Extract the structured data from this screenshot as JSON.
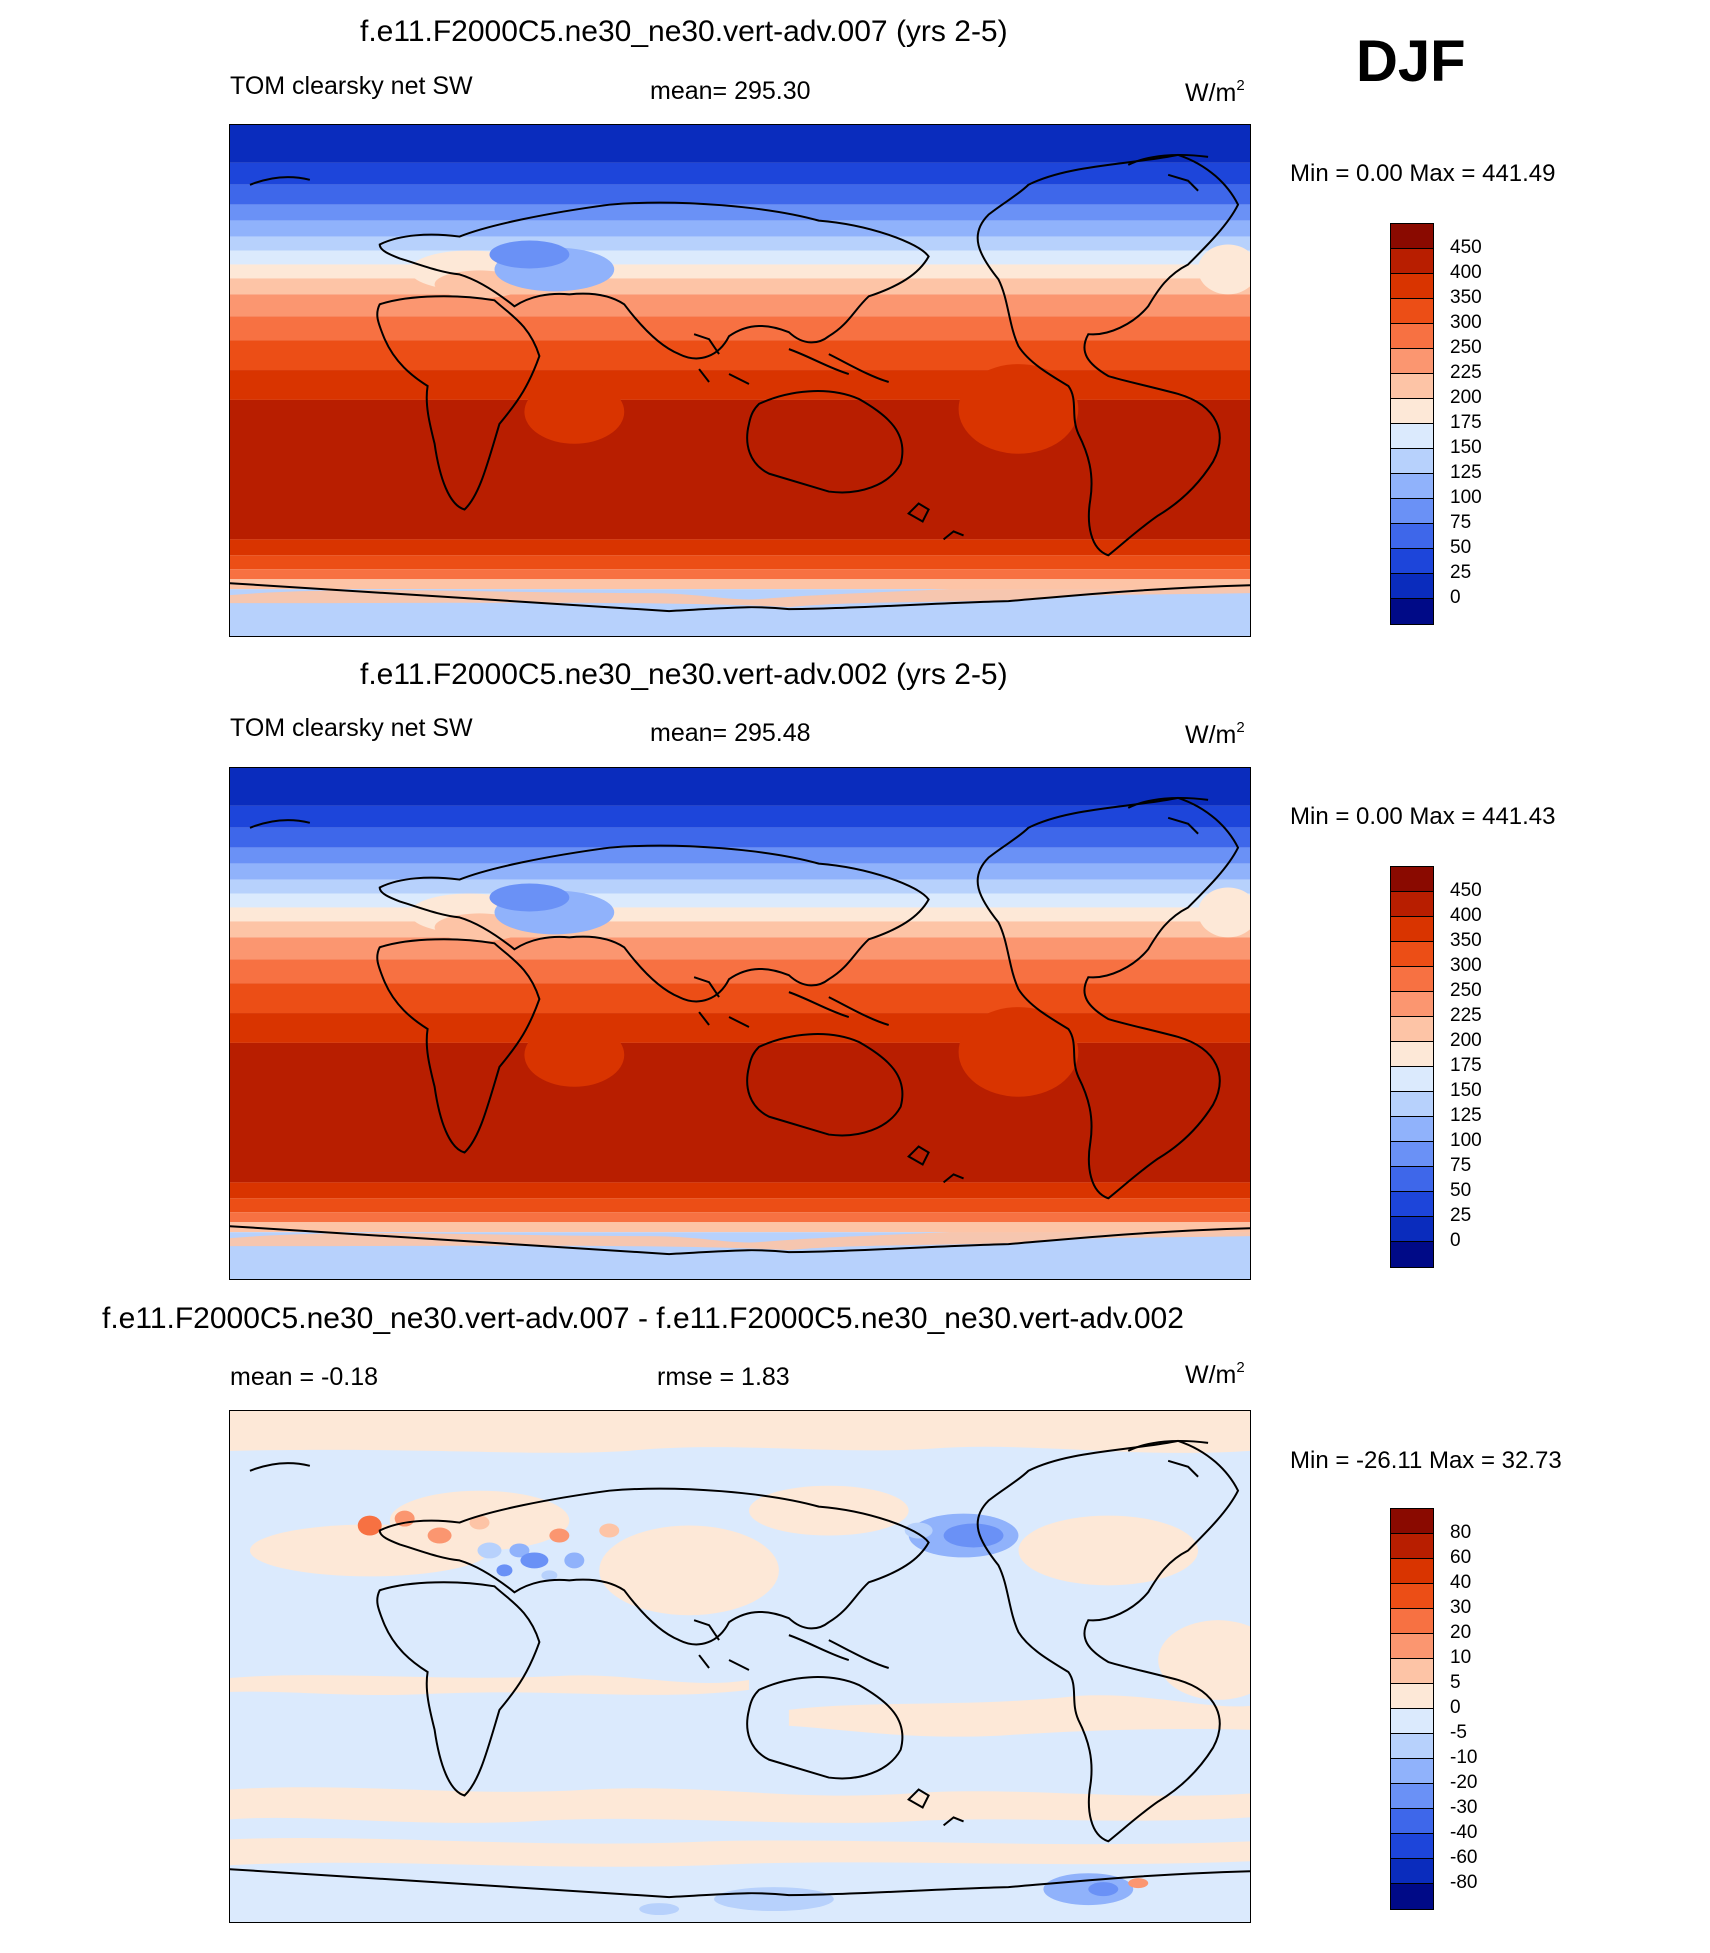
{
  "season": "DJF",
  "variable_label": "TOM clearsky net SW",
  "units_base": "W/m",
  "units_exp": "2",
  "panels": [
    {
      "title": "f.e11.F2000C5.ne30_ne30.vert-adv.007 (yrs 2-5)",
      "stat": "mean= 295.30",
      "minmax": "Min =    0.00 Max = 441.49"
    },
    {
      "title": "f.e11.F2000C5.ne30_ne30.vert-adv.002 (yrs 2-5)",
      "stat": "mean= 295.48",
      "minmax": "Min =    0.00 Max = 441.43"
    },
    {
      "title": "f.e11.F2000C5.ne30_ne30.vert-adv.007 - f.e11.F2000C5.ne30_ne30.vert-adv.002",
      "stat_left": "mean =  -0.18",
      "stat_mid": "rmse =   1.83",
      "minmax": "Min = -26.11 Max =  32.73"
    }
  ],
  "colorbar_abs": {
    "labels": [
      "450",
      "400",
      "350",
      "300",
      "250",
      "225",
      "200",
      "175",
      "150",
      "125",
      "100",
      "75",
      "50",
      "25",
      "0"
    ],
    "colors": [
      "#8a0a00",
      "#b81e00",
      "#d93400",
      "#ec4e16",
      "#f77142",
      "#fb9670",
      "#fdc4a6",
      "#fde8d7",
      "#dbeafd",
      "#b7d1fc",
      "#90b2fb",
      "#6a91f6",
      "#3e67ea",
      "#1d45da",
      "#0a2cbd",
      "#000a87"
    ]
  },
  "colorbar_diff": {
    "labels": [
      "80",
      "60",
      "40",
      "30",
      "20",
      "10",
      "5",
      "0",
      "-5",
      "-10",
      "-20",
      "-30",
      "-40",
      "-60",
      "-80"
    ],
    "colors": [
      "#8a0a00",
      "#b81e00",
      "#d93400",
      "#ec4e16",
      "#f77142",
      "#fb9670",
      "#fdc4a6",
      "#fde8d7",
      "#dbeafd",
      "#b7d1fc",
      "#90b2fb",
      "#6a91f6",
      "#3e67ea",
      "#1d45da",
      "#0a2cbd",
      "#000a87"
    ]
  }
}
